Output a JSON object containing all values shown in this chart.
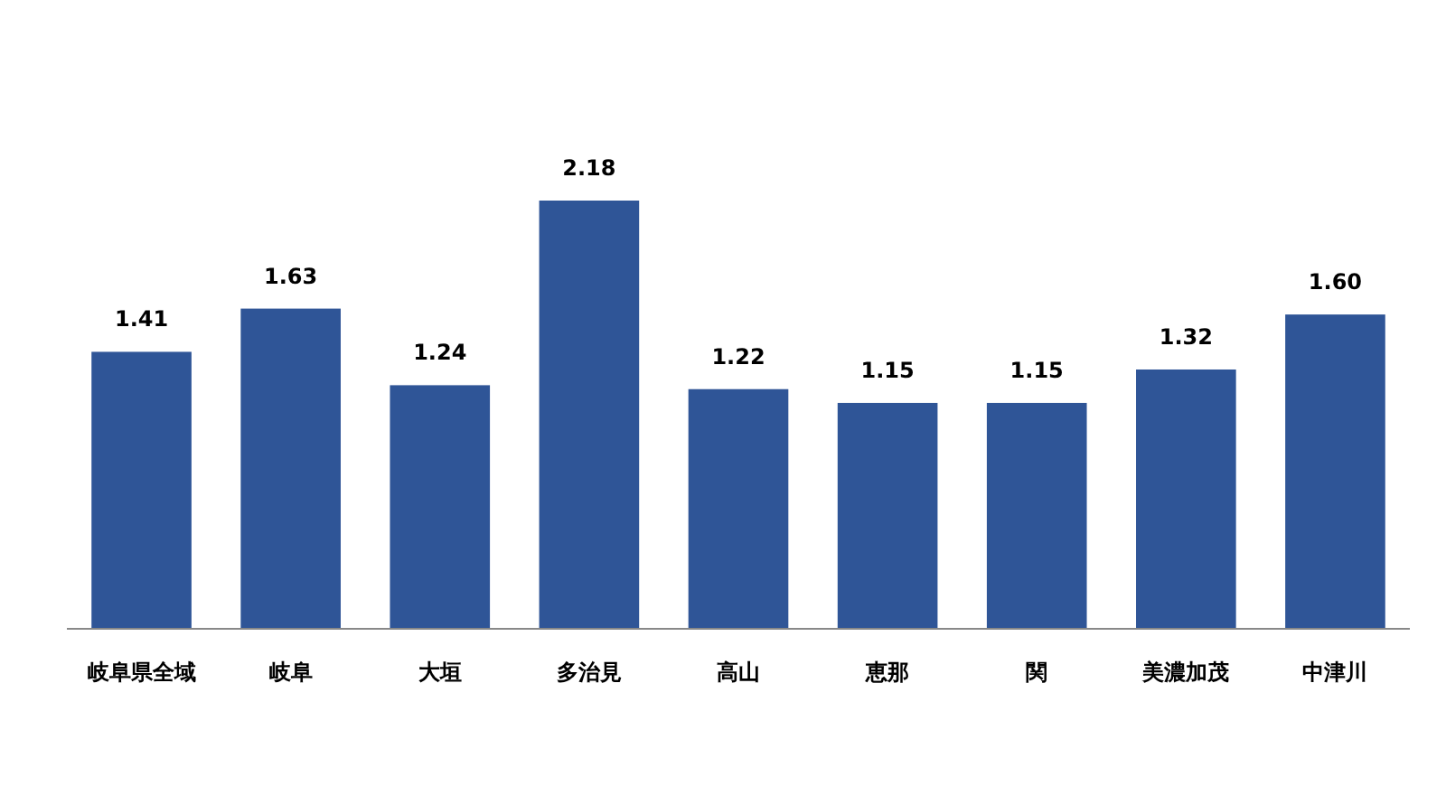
{
  "chart_data": {
    "type": "bar",
    "categories": [
      "岐阜県全域",
      "岐阜",
      "大垣",
      "多治見",
      "高山",
      "恵那",
      "関",
      "美濃加茂",
      "中津川"
    ],
    "values": [
      1.41,
      1.63,
      1.24,
      2.18,
      1.22,
      1.15,
      1.15,
      1.32,
      1.6
    ],
    "color": "#2f5597",
    "value_labels": [
      "1.41",
      "1.63",
      "1.24",
      "2.18",
      "1.22",
      "1.15",
      "1.15",
      "1.32",
      "1.60"
    ]
  }
}
